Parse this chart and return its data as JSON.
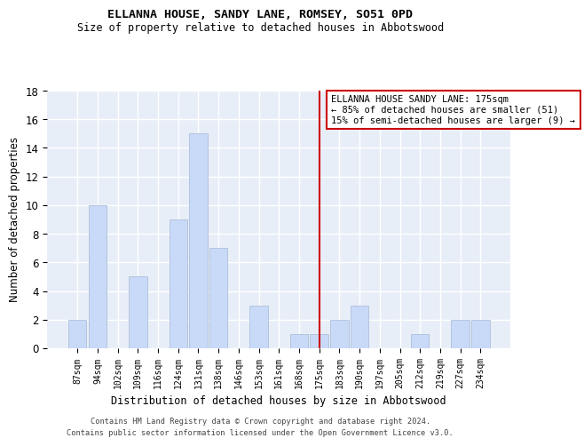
{
  "title": "ELLANNA HOUSE, SANDY LANE, ROMSEY, SO51 0PD",
  "subtitle": "Size of property relative to detached houses in Abbotswood",
  "xlabel": "Distribution of detached houses by size in Abbotswood",
  "ylabel": "Number of detached properties",
  "categories": [
    "87sqm",
    "94sqm",
    "102sqm",
    "109sqm",
    "116sqm",
    "124sqm",
    "131sqm",
    "138sqm",
    "146sqm",
    "153sqm",
    "161sqm",
    "168sqm",
    "175sqm",
    "183sqm",
    "190sqm",
    "197sqm",
    "205sqm",
    "212sqm",
    "219sqm",
    "227sqm",
    "234sqm"
  ],
  "values": [
    2,
    10,
    0,
    5,
    0,
    9,
    15,
    7,
    0,
    3,
    0,
    1,
    1,
    2,
    3,
    0,
    0,
    1,
    0,
    2,
    2
  ],
  "bar_color": "#c9daf8",
  "bar_edge_color": "#a4b8d4",
  "highlight_index": 12,
  "highlight_color": "#cc0000",
  "annotation_text": "ELLANNA HOUSE SANDY LANE: 175sqm\n← 85% of detached houses are smaller (51)\n15% of semi-detached houses are larger (9) →",
  "annotation_box_color": "#ffffff",
  "annotation_border_color": "#cc0000",
  "ylim": [
    0,
    18
  ],
  "yticks": [
    0,
    2,
    4,
    6,
    8,
    10,
    12,
    14,
    16,
    18
  ],
  "background_color": "#e8eef8",
  "grid_color": "#ffffff",
  "footer_line1": "Contains HM Land Registry data © Crown copyright and database right 2024.",
  "footer_line2": "Contains public sector information licensed under the Open Government Licence v3.0."
}
